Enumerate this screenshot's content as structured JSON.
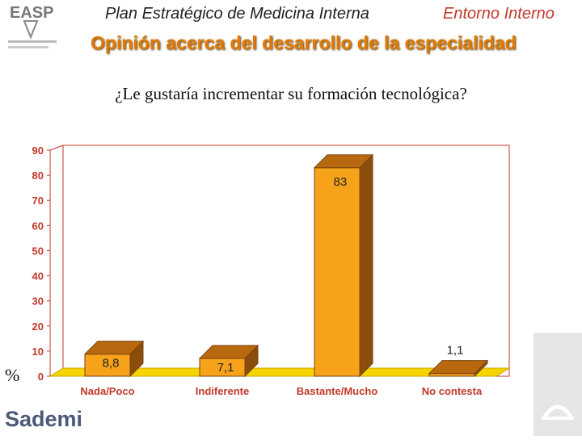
{
  "header": {
    "presentation_title": "Plan Estratégico de Medicina Interna",
    "section": "Entorno Interno",
    "slide_title": "Opinión acerca del desarrollo de la especialidad"
  },
  "logos": {
    "top_left": "EASP",
    "bottom_left": "Sademi",
    "bottom_right": "junta-de-andalucia-logo"
  },
  "chart_data": {
    "type": "bar",
    "title": "¿Le gustaría incrementar su formación tecnológica?",
    "ylabel": "%",
    "categories": [
      "Nada/Poco",
      "Indiferente",
      "Bastante/Mucho",
      "No contesta"
    ],
    "values": [
      8.8,
      7.1,
      83,
      1.1
    ],
    "value_labels": [
      "8,8",
      "7,1",
      "83",
      "1,1"
    ],
    "ylim": [
      0,
      90
    ],
    "yticks": [
      0,
      10,
      20,
      30,
      40,
      50,
      60,
      70,
      80,
      90
    ],
    "grid": false,
    "legend": "none",
    "colors": {
      "bar_front": "#f7a21b",
      "bar_side": "#8a4e0a",
      "bar_top": "#b8690f",
      "bar_outline": "#7a4410",
      "floor": "#f5d400",
      "tick_labels": "#c0392b",
      "plot_border": "#c0392b",
      "value_labels": "#222222"
    }
  }
}
